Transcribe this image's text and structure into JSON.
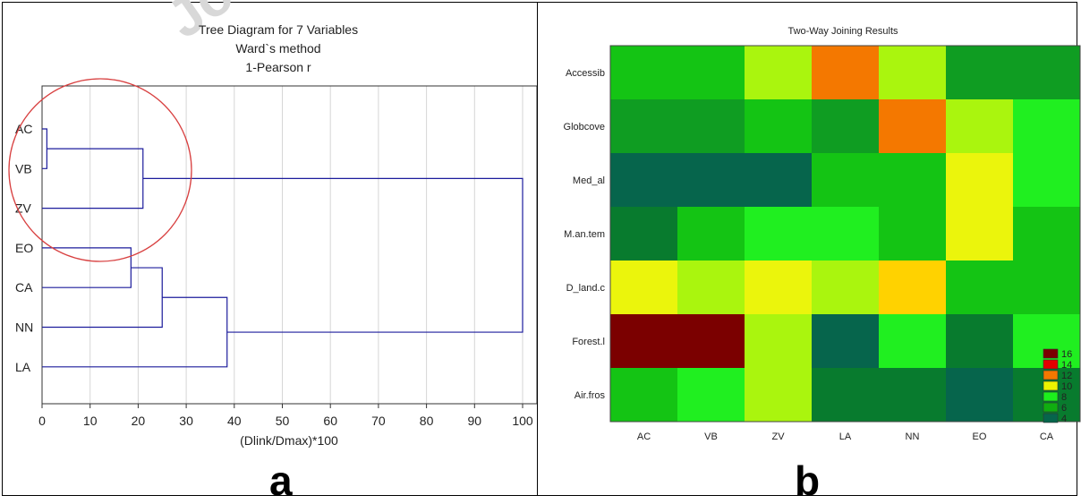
{
  "panel_labels": [
    "a",
    "b"
  ],
  "watermark": "Jo",
  "chart_data": [
    {
      "type": "dendrogram",
      "title": "Tree Diagram for 7   Variables",
      "subtitle_lines": [
        "Ward`s method",
        "1-Pearson r"
      ],
      "xlabel": "(Dlink/Dmax)*100",
      "xlim": [
        0,
        100
      ],
      "xticks": [
        0,
        10,
        20,
        30,
        40,
        50,
        60,
        70,
        80,
        90,
        100
      ],
      "grid": true,
      "leaves": [
        "AC",
        "VB",
        "ZV",
        "EO",
        "CA",
        "NN",
        "LA"
      ],
      "merges": [
        {
          "left": "AC",
          "right": "VB",
          "height": 1
        },
        {
          "left": "AC+VB",
          "right": "ZV",
          "height": 21
        },
        {
          "left": "EO",
          "right": "CA",
          "height": 18.5
        },
        {
          "left": "EO+CA",
          "right": "NN",
          "height": 25
        },
        {
          "left": "EO+CA+NN",
          "right": "LA",
          "height": 38.5
        },
        {
          "left": "AC+VB+ZV",
          "right": "EO+CA+NN+LA",
          "height": 100
        }
      ],
      "line_color": "#1c1c9c",
      "highlight_circle": {
        "leaves": [
          "AC",
          "VB",
          "ZV"
        ],
        "color": "#d84040"
      }
    },
    {
      "type": "heatmap",
      "title": "Two-Way Joining Results",
      "rows": [
        "Accessib",
        "Globcove",
        "Med_al",
        "M.an.tem",
        "D_land.c",
        "Forest.l",
        "Air.fros"
      ],
      "columns": [
        "AC",
        "VB",
        "ZV",
        "LA",
        "NN",
        "EO",
        "CA"
      ],
      "values": [
        [
          7,
          7,
          9,
          12,
          9,
          6,
          6
        ],
        [
          6,
          6,
          7,
          6,
          12,
          9,
          8
        ],
        [
          4,
          4,
          4,
          7,
          7,
          10,
          8
        ],
        [
          5,
          7,
          8,
          8,
          7,
          10,
          7
        ],
        [
          10,
          9,
          10,
          9,
          11,
          7,
          7
        ],
        [
          16,
          16,
          9,
          4,
          8,
          5,
          8
        ],
        [
          7,
          8,
          9,
          5,
          5,
          4,
          5
        ]
      ],
      "legend": [
        {
          "label": "16",
          "color": "#7b0000"
        },
        {
          "label": "14",
          "color": "#e40000"
        },
        {
          "label": "12",
          "color": "#f47800"
        },
        {
          "label": "10",
          "color": "#ecf400"
        },
        {
          "label": "8",
          "color": "#1cf01c"
        },
        {
          "label": "6",
          "color": "#10ae10"
        },
        {
          "label": "4",
          "color": "#06654c"
        }
      ],
      "cell_colors": {
        "4": "#06654c",
        "5": "#087b2e",
        "6": "#0f9d22",
        "7": "#14c414",
        "8": "#20ef20",
        "9": "#aaf50e",
        "10": "#ebf50c",
        "11": "#ffd200",
        "12": "#f47800",
        "16": "#7b0000"
      },
      "legend_placement": "bottom-right"
    }
  ]
}
